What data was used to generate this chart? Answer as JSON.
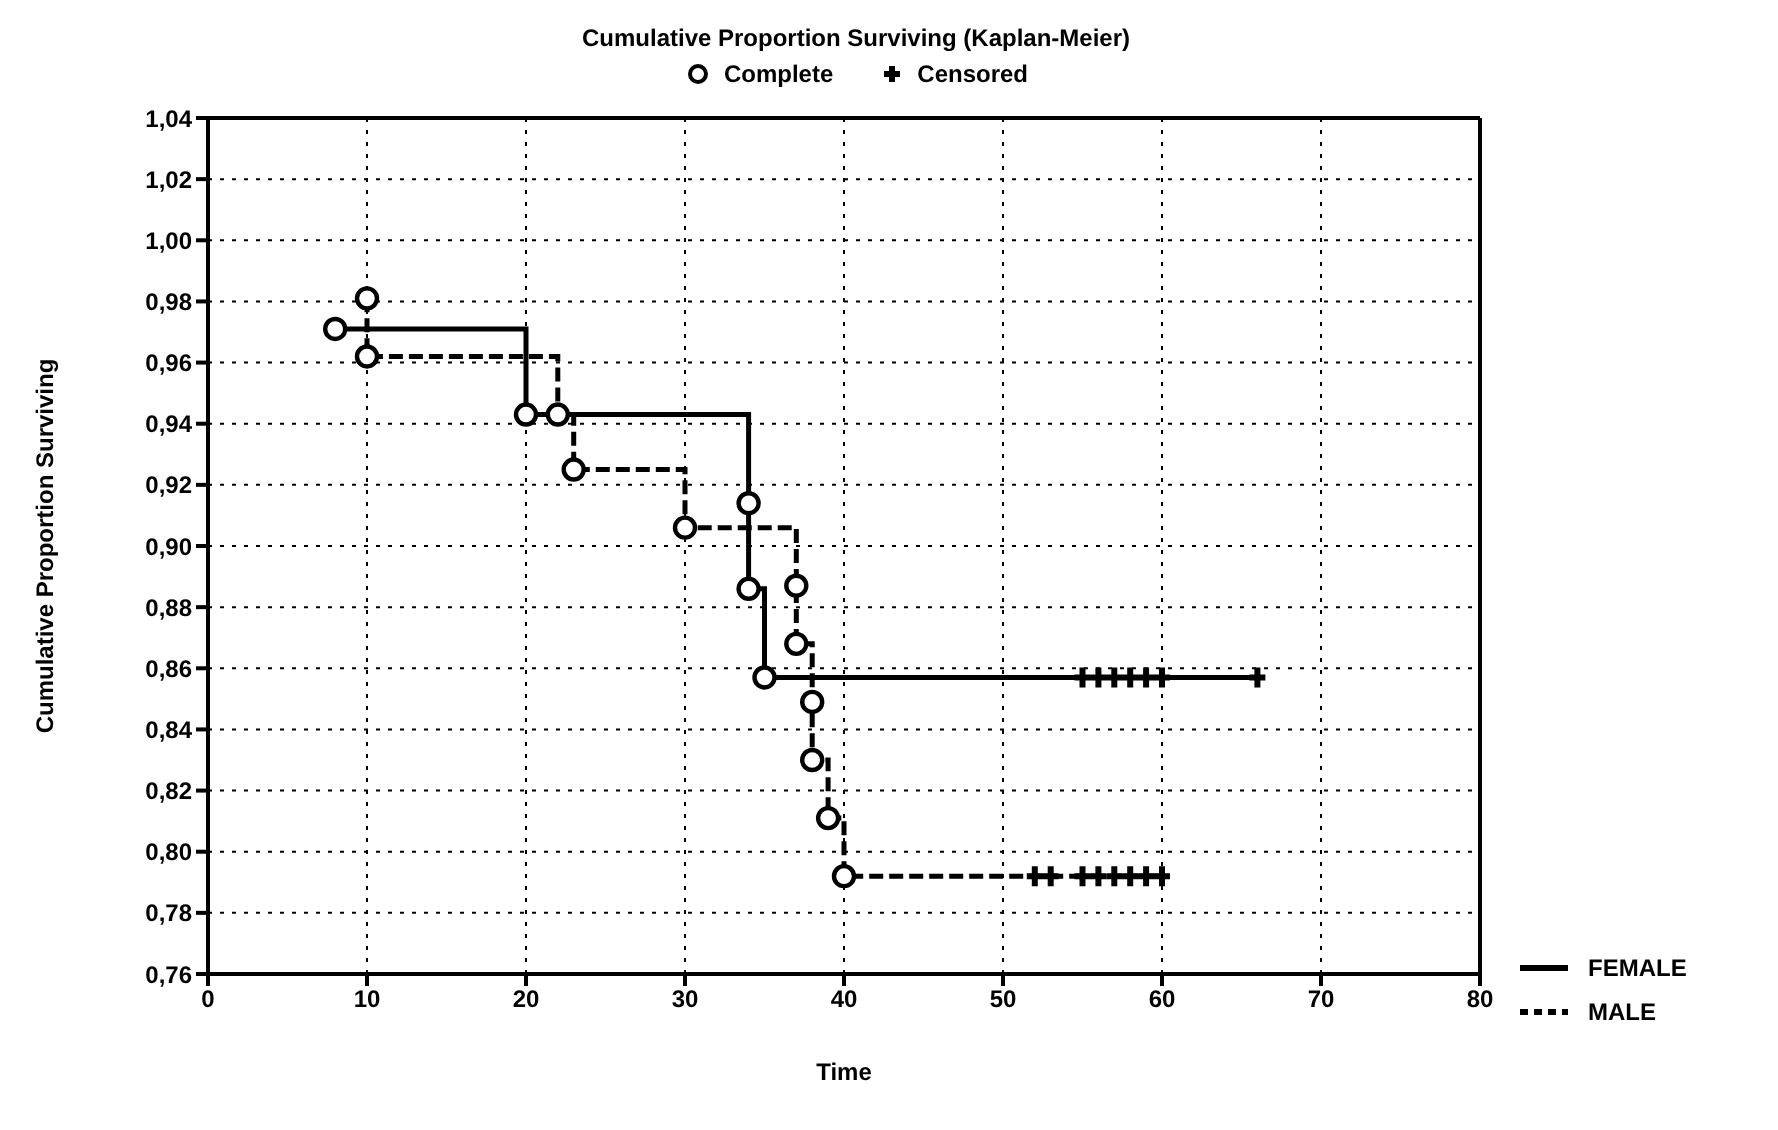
{
  "chart_data": {
    "type": "step",
    "title": "Cumulative Proportion Surviving (Kaplan-Meier)",
    "xlabel": "Time",
    "ylabel": "Cumulative Proportion Surviving",
    "xlim": [
      0,
      80
    ],
    "xticks": [
      0,
      10,
      20,
      30,
      40,
      50,
      60,
      70,
      80
    ],
    "ylim": [
      0.76,
      1.04
    ],
    "yticks": [
      {
        "value": 0.76,
        "label": "0,76"
      },
      {
        "value": 0.78,
        "label": "0,78"
      },
      {
        "value": 0.8,
        "label": "0,80"
      },
      {
        "value": 0.82,
        "label": "0,82"
      },
      {
        "value": 0.84,
        "label": "0,84"
      },
      {
        "value": 0.86,
        "label": "0,86"
      },
      {
        "value": 0.88,
        "label": "0,88"
      },
      {
        "value": 0.9,
        "label": "0,90"
      },
      {
        "value": 0.92,
        "label": "0,92"
      },
      {
        "value": 0.94,
        "label": "0,94"
      },
      {
        "value": 0.96,
        "label": "0,96"
      },
      {
        "value": 0.98,
        "label": "0,98"
      },
      {
        "value": 1.0,
        "label": "1,00"
      },
      {
        "value": 1.02,
        "label": "1,02"
      },
      {
        "value": 1.04,
        "label": "1,04"
      }
    ],
    "grid": true,
    "legend": "top",
    "series": [
      {
        "name": "FEMALE",
        "color": "#000000",
        "line_style": "solid",
        "x": [
          8,
          20,
          34,
          34,
          35,
          66
        ],
        "values": [
          0.971,
          0.943,
          0.914,
          0.886,
          0.857,
          0.857
        ]
      },
      {
        "name": "MALE",
        "color": "#000000",
        "line_style": "dashed",
        "x": [
          10,
          10,
          22,
          23,
          30,
          37,
          37,
          38,
          38,
          39,
          40,
          60
        ],
        "values": [
          0.981,
          0.962,
          0.943,
          0.925,
          0.906,
          0.887,
          0.868,
          0.849,
          0.83,
          0.811,
          0.792,
          0.792
        ]
      },
      {
        "name": "Complete",
        "type": "scatter",
        "marker": "circle",
        "color": "#000000",
        "x": [
          8,
          20,
          34,
          34,
          35,
          10,
          10,
          22,
          23,
          30,
          37,
          37,
          38,
          38,
          39,
          40
        ],
        "values": [
          0.971,
          0.943,
          0.914,
          0.886,
          0.857,
          0.981,
          0.962,
          0.943,
          0.925,
          0.906,
          0.887,
          0.868,
          0.849,
          0.83,
          0.811,
          0.792
        ]
      },
      {
        "name": "Censored",
        "type": "scatter",
        "marker": "cross",
        "color": "#000000",
        "x": [
          55,
          56,
          57,
          58,
          59,
          60,
          66,
          52,
          53,
          55,
          56,
          57,
          58,
          59,
          60
        ],
        "values": [
          0.857,
          0.857,
          0.857,
          0.857,
          0.857,
          0.857,
          0.857,
          0.792,
          0.792,
          0.792,
          0.792,
          0.792,
          0.792,
          0.792,
          0.792
        ]
      }
    ]
  }
}
